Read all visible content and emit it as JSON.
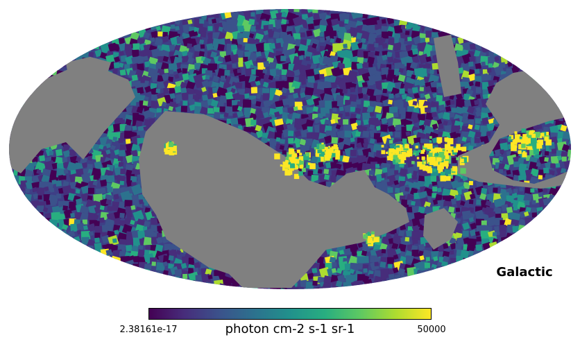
{
  "map": {
    "coordinate_system": "Galactic",
    "projection": "mollweide",
    "colormap": "viridis",
    "no_data_color": "#808080"
  },
  "colorbar": {
    "min_label": "2.38161e-17",
    "max_label": "50000",
    "unit": "photon cm-2 s-1 sr-1",
    "colors": [
      "#440154",
      "#472d7b",
      "#3b528b",
      "#2c728e",
      "#21918c",
      "#28ae80",
      "#5ec962",
      "#addc30",
      "#fde725"
    ]
  }
}
